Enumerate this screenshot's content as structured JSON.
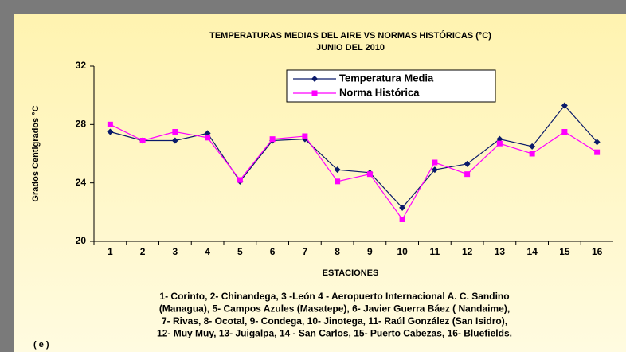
{
  "chart_data": {
    "type": "line",
    "title": "TEMPERATURAS MEDIAS DEL AIRE  VS  NORMAS  HISTÓRICAS  (°C)",
    "subtitle": "JUNIO DEL 2010",
    "x_label": "ESTACIONES",
    "y_label": "Grados Centigrados °C",
    "categories": [
      "1",
      "2",
      "3",
      "4",
      "5",
      "6",
      "7",
      "8",
      "9",
      "10",
      "11",
      "12",
      "13",
      "14",
      "15",
      "16"
    ],
    "series": [
      {
        "name": "Temperatura Media",
        "color": "#0a1a6a",
        "marker": "diamond",
        "values": [
          27.5,
          26.9,
          26.9,
          27.4,
          24.1,
          26.9,
          27.0,
          24.9,
          24.7,
          22.3,
          24.9,
          25.3,
          27.0,
          26.5,
          29.3,
          26.8
        ]
      },
      {
        "name": "Norma Histórica",
        "color": "#ff00ff",
        "marker": "square",
        "values": [
          28.0,
          26.9,
          27.5,
          27.1,
          24.2,
          27.0,
          27.2,
          24.1,
          24.6,
          21.5,
          25.4,
          24.6,
          26.7,
          26.0,
          27.5,
          26.1
        ]
      }
    ],
    "ylim": [
      20,
      32
    ],
    "yticks": [
      20,
      24,
      28,
      32
    ],
    "grid": false,
    "legend": "top",
    "notes": [
      "1- Corinto,  2- Chinandega, 3 -León 4 - Aeropuerto Internacional A. C. Sandino",
      "(Managua), 5- Campos Azules (Masatepe), 6- Javier Guerra Báez ( Nandaime),",
      "7- Rivas, 8- Ocotal, 9- Condega, 10- Jinotega, 11- Raúl González (San Isidro),",
      "12- Muy Muy, 13- Juigalpa, 14 - San Carlos, 15- Puerto Cabezas, 16- Bluefields."
    ],
    "source": "( e )"
  }
}
